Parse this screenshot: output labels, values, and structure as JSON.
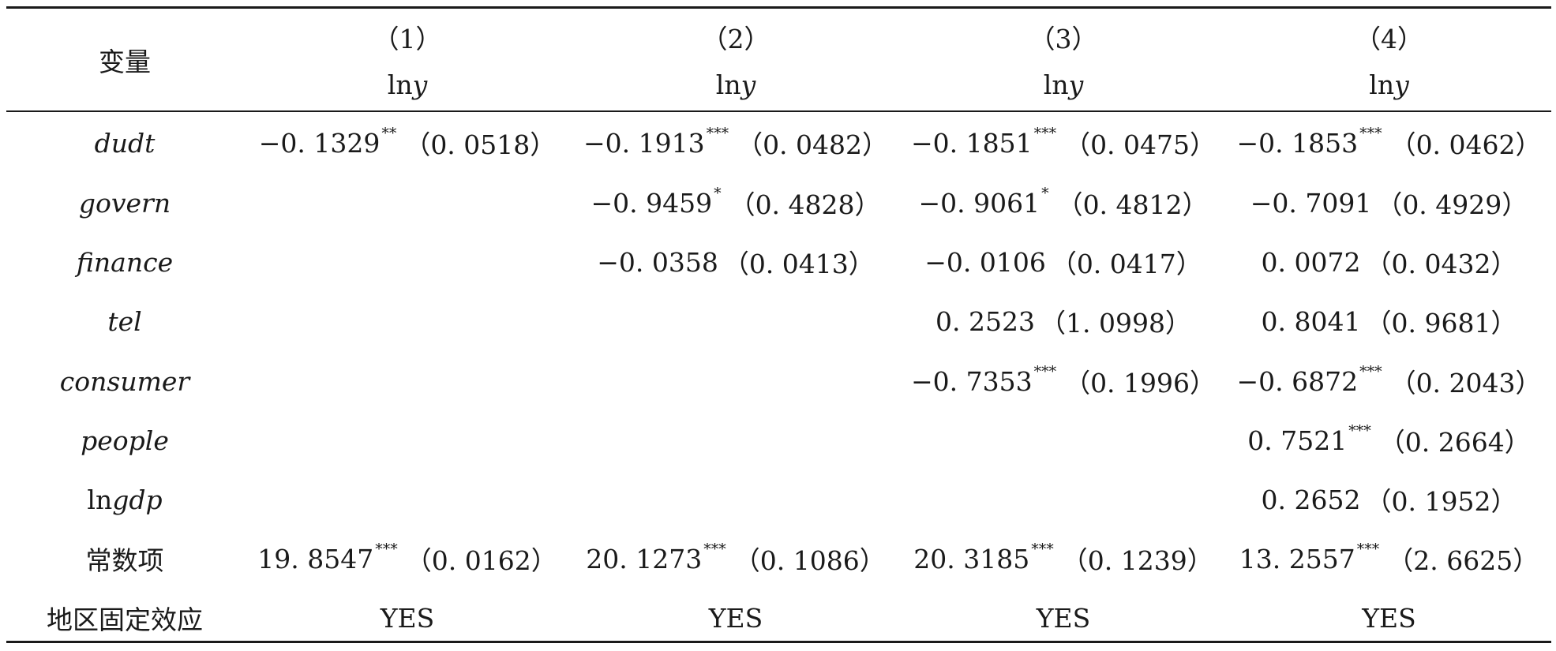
{
  "table": {
    "variable_header": "变量",
    "columns": [
      {
        "number": "（1）",
        "dep_var": "lny"
      },
      {
        "number": "（2）",
        "dep_var": "lny"
      },
      {
        "number": "（3）",
        "dep_var": "lny"
      },
      {
        "number": "（4）",
        "dep_var": "lny"
      }
    ],
    "rows": [
      {
        "label": "dudt",
        "italic": true,
        "cells": [
          {
            "coef": "−0. 1329",
            "stars": "**",
            "se": "（0. 0518）"
          },
          {
            "coef": "−0. 1913",
            "stars": "***",
            "se": "（0. 0482）"
          },
          {
            "coef": "−0. 1851",
            "stars": "***",
            "se": "（0. 0475）"
          },
          {
            "coef": "−0. 1853",
            "stars": "***",
            "se": "（0. 0462）"
          }
        ]
      },
      {
        "label": "govern",
        "italic": true,
        "cells": [
          {
            "coef": "",
            "stars": "",
            "se": ""
          },
          {
            "coef": "−0. 9459",
            "stars": "*",
            "se": "（0. 4828）"
          },
          {
            "coef": "−0. 9061",
            "stars": "*",
            "se": "（0. 4812）"
          },
          {
            "coef": "−0. 7091",
            "stars": "",
            "se": "（0. 4929）"
          }
        ]
      },
      {
        "label": "finance",
        "italic": true,
        "cells": [
          {
            "coef": "",
            "stars": "",
            "se": ""
          },
          {
            "coef": "−0. 0358",
            "stars": "",
            "se": "（0. 0413）"
          },
          {
            "coef": "−0. 0106",
            "stars": "",
            "se": "（0. 0417）"
          },
          {
            "coef": "0. 0072",
            "stars": "",
            "se": "（0. 0432）"
          }
        ]
      },
      {
        "label": "tel",
        "italic": true,
        "cells": [
          {
            "coef": "",
            "stars": "",
            "se": ""
          },
          {
            "coef": "",
            "stars": "",
            "se": ""
          },
          {
            "coef": "0. 2523",
            "stars": "",
            "se": "（1. 0998）"
          },
          {
            "coef": "0. 8041",
            "stars": "",
            "se": "（0. 9681）"
          }
        ]
      },
      {
        "label": "consumer",
        "italic": true,
        "cells": [
          {
            "coef": "",
            "stars": "",
            "se": ""
          },
          {
            "coef": "",
            "stars": "",
            "se": ""
          },
          {
            "coef": "−0. 7353",
            "stars": "***",
            "se": "（0. 1996）"
          },
          {
            "coef": "−0. 6872",
            "stars": "***",
            "se": "（0. 2043）"
          }
        ]
      },
      {
        "label": "people",
        "italic": true,
        "cells": [
          {
            "coef": "",
            "stars": "",
            "se": ""
          },
          {
            "coef": "",
            "stars": "",
            "se": ""
          },
          {
            "coef": "",
            "stars": "",
            "se": ""
          },
          {
            "coef": "0. 7521",
            "stars": "***",
            "se": "（0. 2664）"
          }
        ]
      },
      {
        "label": "lngdp",
        "italic": false,
        "cells": [
          {
            "coef": "",
            "stars": "",
            "se": ""
          },
          {
            "coef": "",
            "stars": "",
            "se": ""
          },
          {
            "coef": "",
            "stars": "",
            "se": ""
          },
          {
            "coef": "0. 2652",
            "stars": "",
            "se": "（0. 1952）"
          }
        ]
      },
      {
        "label": "常数项",
        "italic": false,
        "cells": [
          {
            "coef": "19. 8547",
            "stars": "***",
            "se": "（0. 0162）"
          },
          {
            "coef": "20. 1273",
            "stars": "***",
            "se": "（0. 1086）"
          },
          {
            "coef": "20. 3185",
            "stars": "***",
            "se": "（0. 1239）"
          },
          {
            "coef": "13. 2557",
            "stars": "***",
            "se": "（2. 6625）"
          }
        ]
      },
      {
        "label": "地区固定效应",
        "italic": false,
        "cells": [
          {
            "coef": "YES",
            "stars": "",
            "se": ""
          },
          {
            "coef": "YES",
            "stars": "",
            "se": ""
          },
          {
            "coef": "YES",
            "stars": "",
            "se": ""
          },
          {
            "coef": "YES",
            "stars": "",
            "se": ""
          }
        ]
      }
    ]
  }
}
